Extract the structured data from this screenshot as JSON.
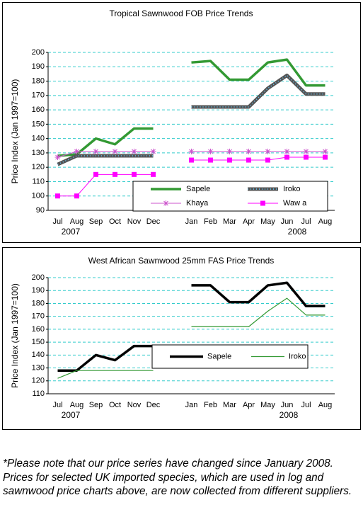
{
  "chart_data": [
    {
      "type": "line",
      "title": "Tropical Sawnwood FOB Price Trends",
      "ylabel": "Price Index (Jan 1997=100)",
      "categories": [
        "Jul",
        "Aug",
        "Sep",
        "Oct",
        "Nov",
        "Dec",
        null,
        "Jan",
        "Feb",
        "Mar",
        "Apr",
        "May",
        "Jun",
        "Jul",
        "Aug"
      ],
      "year_labels": [
        "2007",
        "2008"
      ],
      "ylim": [
        90,
        200
      ],
      "yticks": [
        90,
        100,
        110,
        120,
        130,
        140,
        150,
        160,
        170,
        180,
        190,
        200
      ],
      "grid": true,
      "series": [
        {
          "name": "Sapele",
          "color": "#339933",
          "line_width": 3.5,
          "marker": "none",
          "values": [
            128,
            129,
            140,
            136,
            147,
            147,
            null,
            193,
            194,
            181,
            181,
            193,
            195,
            177,
            177
          ]
        },
        {
          "name": "Iroko",
          "color": "#555555",
          "line_width": 5,
          "marker": "dotted",
          "values": [
            122,
            128,
            128,
            128,
            128,
            128,
            null,
            162,
            162,
            162,
            162,
            175,
            184,
            171,
            171
          ]
        },
        {
          "name": "Khaya",
          "color": "#cc55cc",
          "line_width": 1,
          "marker": "star",
          "values": [
            127,
            131,
            131,
            131,
            131,
            131,
            null,
            131,
            131,
            131,
            131,
            131,
            131,
            131,
            131
          ]
        },
        {
          "name": "Waw a",
          "color": "#ff00ff",
          "line_width": 1,
          "marker": "square",
          "values": [
            100,
            100,
            115,
            115,
            115,
            115,
            null,
            125,
            125,
            125,
            125,
            125,
            127,
            127,
            127
          ]
        }
      ]
    },
    {
      "type": "line",
      "title": "West African Sawnwood 25mm FAS Price Trends",
      "ylabel": "Price Index (Jan 1997=100)",
      "categories": [
        "Jul",
        "Aug",
        "Sep",
        "Oct",
        "Nov",
        "Dec",
        null,
        "Jan",
        "Feb",
        "Mar",
        "Apr",
        "May",
        "Jun",
        "Jul",
        "Aug"
      ],
      "year_labels": [
        "2007",
        "2008"
      ],
      "ylim": [
        110,
        200
      ],
      "yticks": [
        110,
        120,
        130,
        140,
        150,
        160,
        170,
        180,
        190,
        200
      ],
      "grid": true,
      "series": [
        {
          "name": "Sapele",
          "color": "#000000",
          "line_width": 3.5,
          "marker": "none",
          "values": [
            128,
            128,
            140,
            136,
            147,
            147,
            null,
            194,
            194,
            181,
            181,
            194,
            196,
            178,
            178
          ]
        },
        {
          "name": "Iroko",
          "color": "#339933",
          "line_width": 1.2,
          "marker": "none",
          "values": [
            122,
            128,
            128,
            128,
            128,
            128,
            null,
            162,
            162,
            162,
            162,
            174,
            184,
            171,
            171
          ]
        }
      ]
    }
  ],
  "note": "*Please note that our price series have changed since January 2008. Prices for selected UK imported species, which are used in log and sawnwood price charts above, are now collected from different suppliers."
}
